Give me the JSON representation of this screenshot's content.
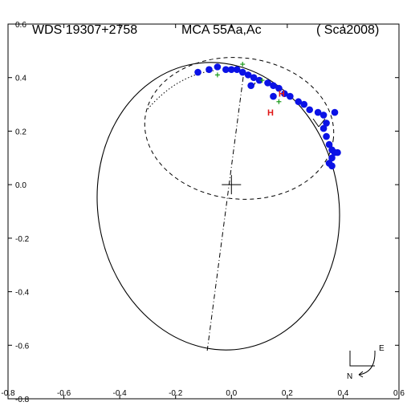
{
  "chart_data": {
    "type": "scatter",
    "title_left": "WDS 19307+2758",
    "title_mid": "MCA  55Aa,Ac",
    "title_right": "( Sca2008)",
    "xlim": [
      -0.8,
      0.6
    ],
    "ylim": [
      -0.8,
      0.6
    ],
    "x_ticks": [
      "-0.8",
      "-0.6",
      "-0.4",
      "-0.2",
      "0.0",
      "0.2",
      "0.4",
      "0.6"
    ],
    "y_ticks": [
      "-0.8",
      "-0.6",
      "-0.4",
      "-0.2",
      "0.0",
      "0.2",
      "0.4",
      "0.6"
    ],
    "observations": [
      {
        "x": -0.12,
        "y": 0.42
      },
      {
        "x": -0.08,
        "y": 0.43
      },
      {
        "x": -0.05,
        "y": 0.44
      },
      {
        "x": -0.02,
        "y": 0.43
      },
      {
        "x": 0.0,
        "y": 0.43
      },
      {
        "x": 0.02,
        "y": 0.43
      },
      {
        "x": 0.04,
        "y": 0.42
      },
      {
        "x": 0.06,
        "y": 0.41
      },
      {
        "x": 0.08,
        "y": 0.4
      },
      {
        "x": 0.1,
        "y": 0.39
      },
      {
        "x": 0.13,
        "y": 0.38
      },
      {
        "x": 0.15,
        "y": 0.37
      },
      {
        "x": 0.17,
        "y": 0.36
      },
      {
        "x": 0.19,
        "y": 0.34
      },
      {
        "x": 0.21,
        "y": 0.33
      },
      {
        "x": 0.24,
        "y": 0.31
      },
      {
        "x": 0.26,
        "y": 0.3
      },
      {
        "x": 0.28,
        "y": 0.28
      },
      {
        "x": 0.31,
        "y": 0.27
      },
      {
        "x": 0.33,
        "y": 0.26
      },
      {
        "x": 0.34,
        "y": 0.23
      },
      {
        "x": 0.33,
        "y": 0.21
      },
      {
        "x": 0.34,
        "y": 0.18
      },
      {
        "x": 0.35,
        "y": 0.15
      },
      {
        "x": 0.36,
        "y": 0.13
      },
      {
        "x": 0.36,
        "y": 0.1
      },
      {
        "x": 0.37,
        "y": 0.12
      },
      {
        "x": 0.35,
        "y": 0.08
      },
      {
        "x": 0.36,
        "y": 0.07
      },
      {
        "x": 0.38,
        "y": 0.12
      },
      {
        "x": 0.07,
        "y": 0.37
      },
      {
        "x": 0.15,
        "y": 0.33
      },
      {
        "x": 0.37,
        "y": 0.27
      }
    ],
    "green_points": [
      {
        "x": 0.04,
        "y": 0.45
      },
      {
        "x": -0.05,
        "y": 0.41
      },
      {
        "x": 0.11,
        "y": 0.39
      },
      {
        "x": 0.17,
        "y": 0.31
      }
    ],
    "red_marks": [
      {
        "label": "H",
        "x": 0.18,
        "y": 0.34
      },
      {
        "label": "H",
        "x": 0.14,
        "y": 0.27
      }
    ],
    "compass": {
      "east": "E",
      "north": "N"
    }
  }
}
